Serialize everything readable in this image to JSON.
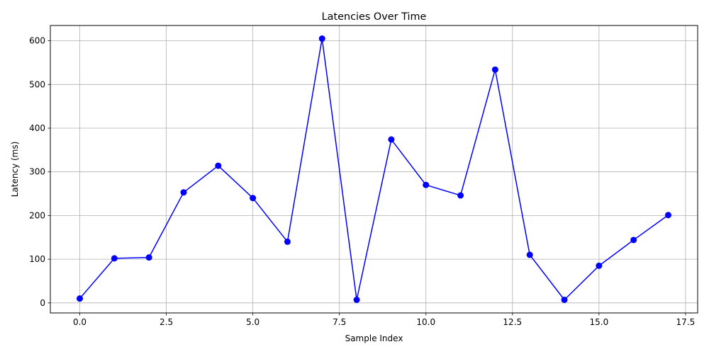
{
  "chart_data": {
    "type": "line",
    "title": "Latencies Over Time",
    "xlabel": "Sample Index",
    "ylabel": "Latency (ms)",
    "xlim": [
      -0.85,
      17.85
    ],
    "ylim": [
      -23,
      635
    ],
    "xticks": [
      0.0,
      2.5,
      5.0,
      7.5,
      10.0,
      12.5,
      15.0,
      17.5
    ],
    "xtick_labels": [
      "0.0",
      "2.5",
      "5.0",
      "7.5",
      "10.0",
      "12.5",
      "15.0",
      "17.5"
    ],
    "yticks": [
      0,
      100,
      200,
      300,
      400,
      500,
      600
    ],
    "ytick_labels": [
      "0",
      "100",
      "200",
      "300",
      "400",
      "500",
      "600"
    ],
    "grid": true,
    "series": [
      {
        "color": "#0000ff",
        "marker": "circle",
        "x": [
          0,
          1,
          2,
          3,
          4,
          5,
          6,
          7,
          8,
          9,
          10,
          11,
          12,
          13,
          14,
          15,
          16,
          17
        ],
        "y": [
          10,
          102,
          104,
          253,
          314,
          240,
          140,
          605,
          7,
          374,
          270,
          246,
          534,
          110,
          7,
          85,
          144,
          201
        ]
      }
    ]
  }
}
